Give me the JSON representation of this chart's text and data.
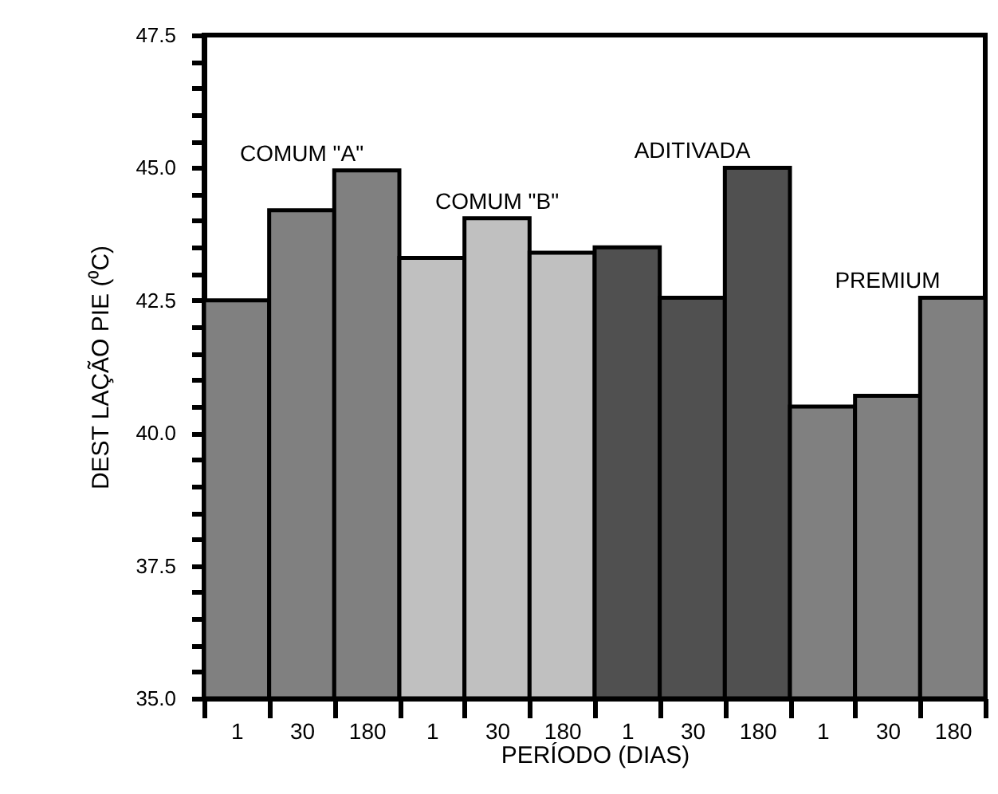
{
  "chart_data": {
    "type": "bar",
    "xlabel": "PERÍODO (DIAS)",
    "ylabel": "DEST LAÇÃO PIE (⁰C)",
    "categories": [
      "1",
      "30",
      "180",
      "1",
      "30",
      "180",
      "1",
      "30",
      "180",
      "1",
      "30",
      "180"
    ],
    "values": [
      42.5,
      44.2,
      44.95,
      43.3,
      44.05,
      43.4,
      43.5,
      42.55,
      45.0,
      40.5,
      40.7,
      42.55
    ],
    "colors": [
      "#808080",
      "#808080",
      "#808080",
      "#c0c0c0",
      "#c0c0c0",
      "#c0c0c0",
      "#505050",
      "#505050",
      "#505050",
      "#808080",
      "#808080",
      "#808080"
    ],
    "annotations": [
      "COMUM \"A\"",
      "COMUM \"B\"",
      "ADITIVADA",
      "PREMIUM"
    ],
    "ylim": [
      35,
      47.5
    ],
    "yticks": [
      {
        "value": 35,
        "label": "35.0"
      },
      {
        "value": 35.5,
        "label": null
      },
      {
        "value": 36,
        "label": null
      },
      {
        "value": 36.5,
        "label": null
      },
      {
        "value": 37,
        "label": null
      },
      {
        "value": 37.5,
        "label": "37.5"
      },
      {
        "value": 38,
        "label": null
      },
      {
        "value": 38.5,
        "label": null
      },
      {
        "value": 39,
        "label": null
      },
      {
        "value": 39.5,
        "label": null
      },
      {
        "value": 40,
        "label": "40.0"
      },
      {
        "value": 40.5,
        "label": null
      },
      {
        "value": 41,
        "label": null
      },
      {
        "value": 41.5,
        "label": null
      },
      {
        "value": 42,
        "label": null
      },
      {
        "value": 42.5,
        "label": "42.5"
      },
      {
        "value": 43,
        "label": null
      },
      {
        "value": 43.5,
        "label": null
      },
      {
        "value": 44,
        "label": null
      },
      {
        "value": 44.5,
        "label": null
      },
      {
        "value": 45,
        "label": "45.0"
      },
      {
        "value": 45.5,
        "label": null
      },
      {
        "value": 46,
        "label": null
      },
      {
        "value": 46.5,
        "label": null
      },
      {
        "value": 47,
        "label": null
      },
      {
        "value": 47.5,
        "label": "47.5"
      }
    ],
    "grid": false
  }
}
